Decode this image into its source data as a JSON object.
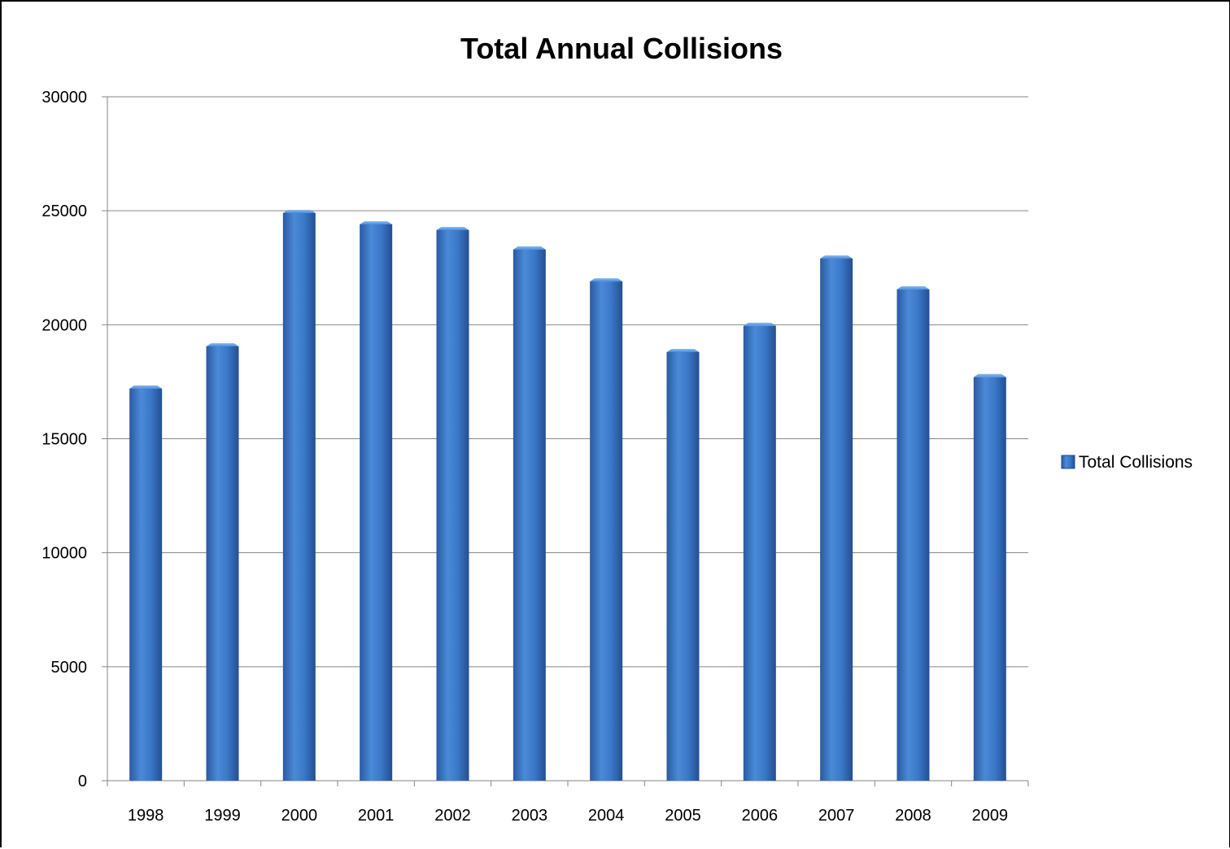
{
  "chart_data": {
    "type": "bar",
    "title": "Total Annual Collisions",
    "xlabel": "",
    "ylabel": "",
    "categories": [
      "1998",
      "1999",
      "2000",
      "2001",
      "2002",
      "2003",
      "2004",
      "2005",
      "2006",
      "2007",
      "2008",
      "2009"
    ],
    "series": [
      {
        "name": "Total Collisions",
        "values": [
          17200,
          19050,
          24900,
          24400,
          24150,
          23300,
          21900,
          18800,
          19950,
          22900,
          21550,
          17700
        ],
        "color": "#3a72be"
      }
    ],
    "ylim": [
      0,
      30000
    ],
    "yticks": [
      "0",
      "5000",
      "10000",
      "15000",
      "20000",
      "25000",
      "30000"
    ],
    "grid": true,
    "legend_position": "right"
  }
}
